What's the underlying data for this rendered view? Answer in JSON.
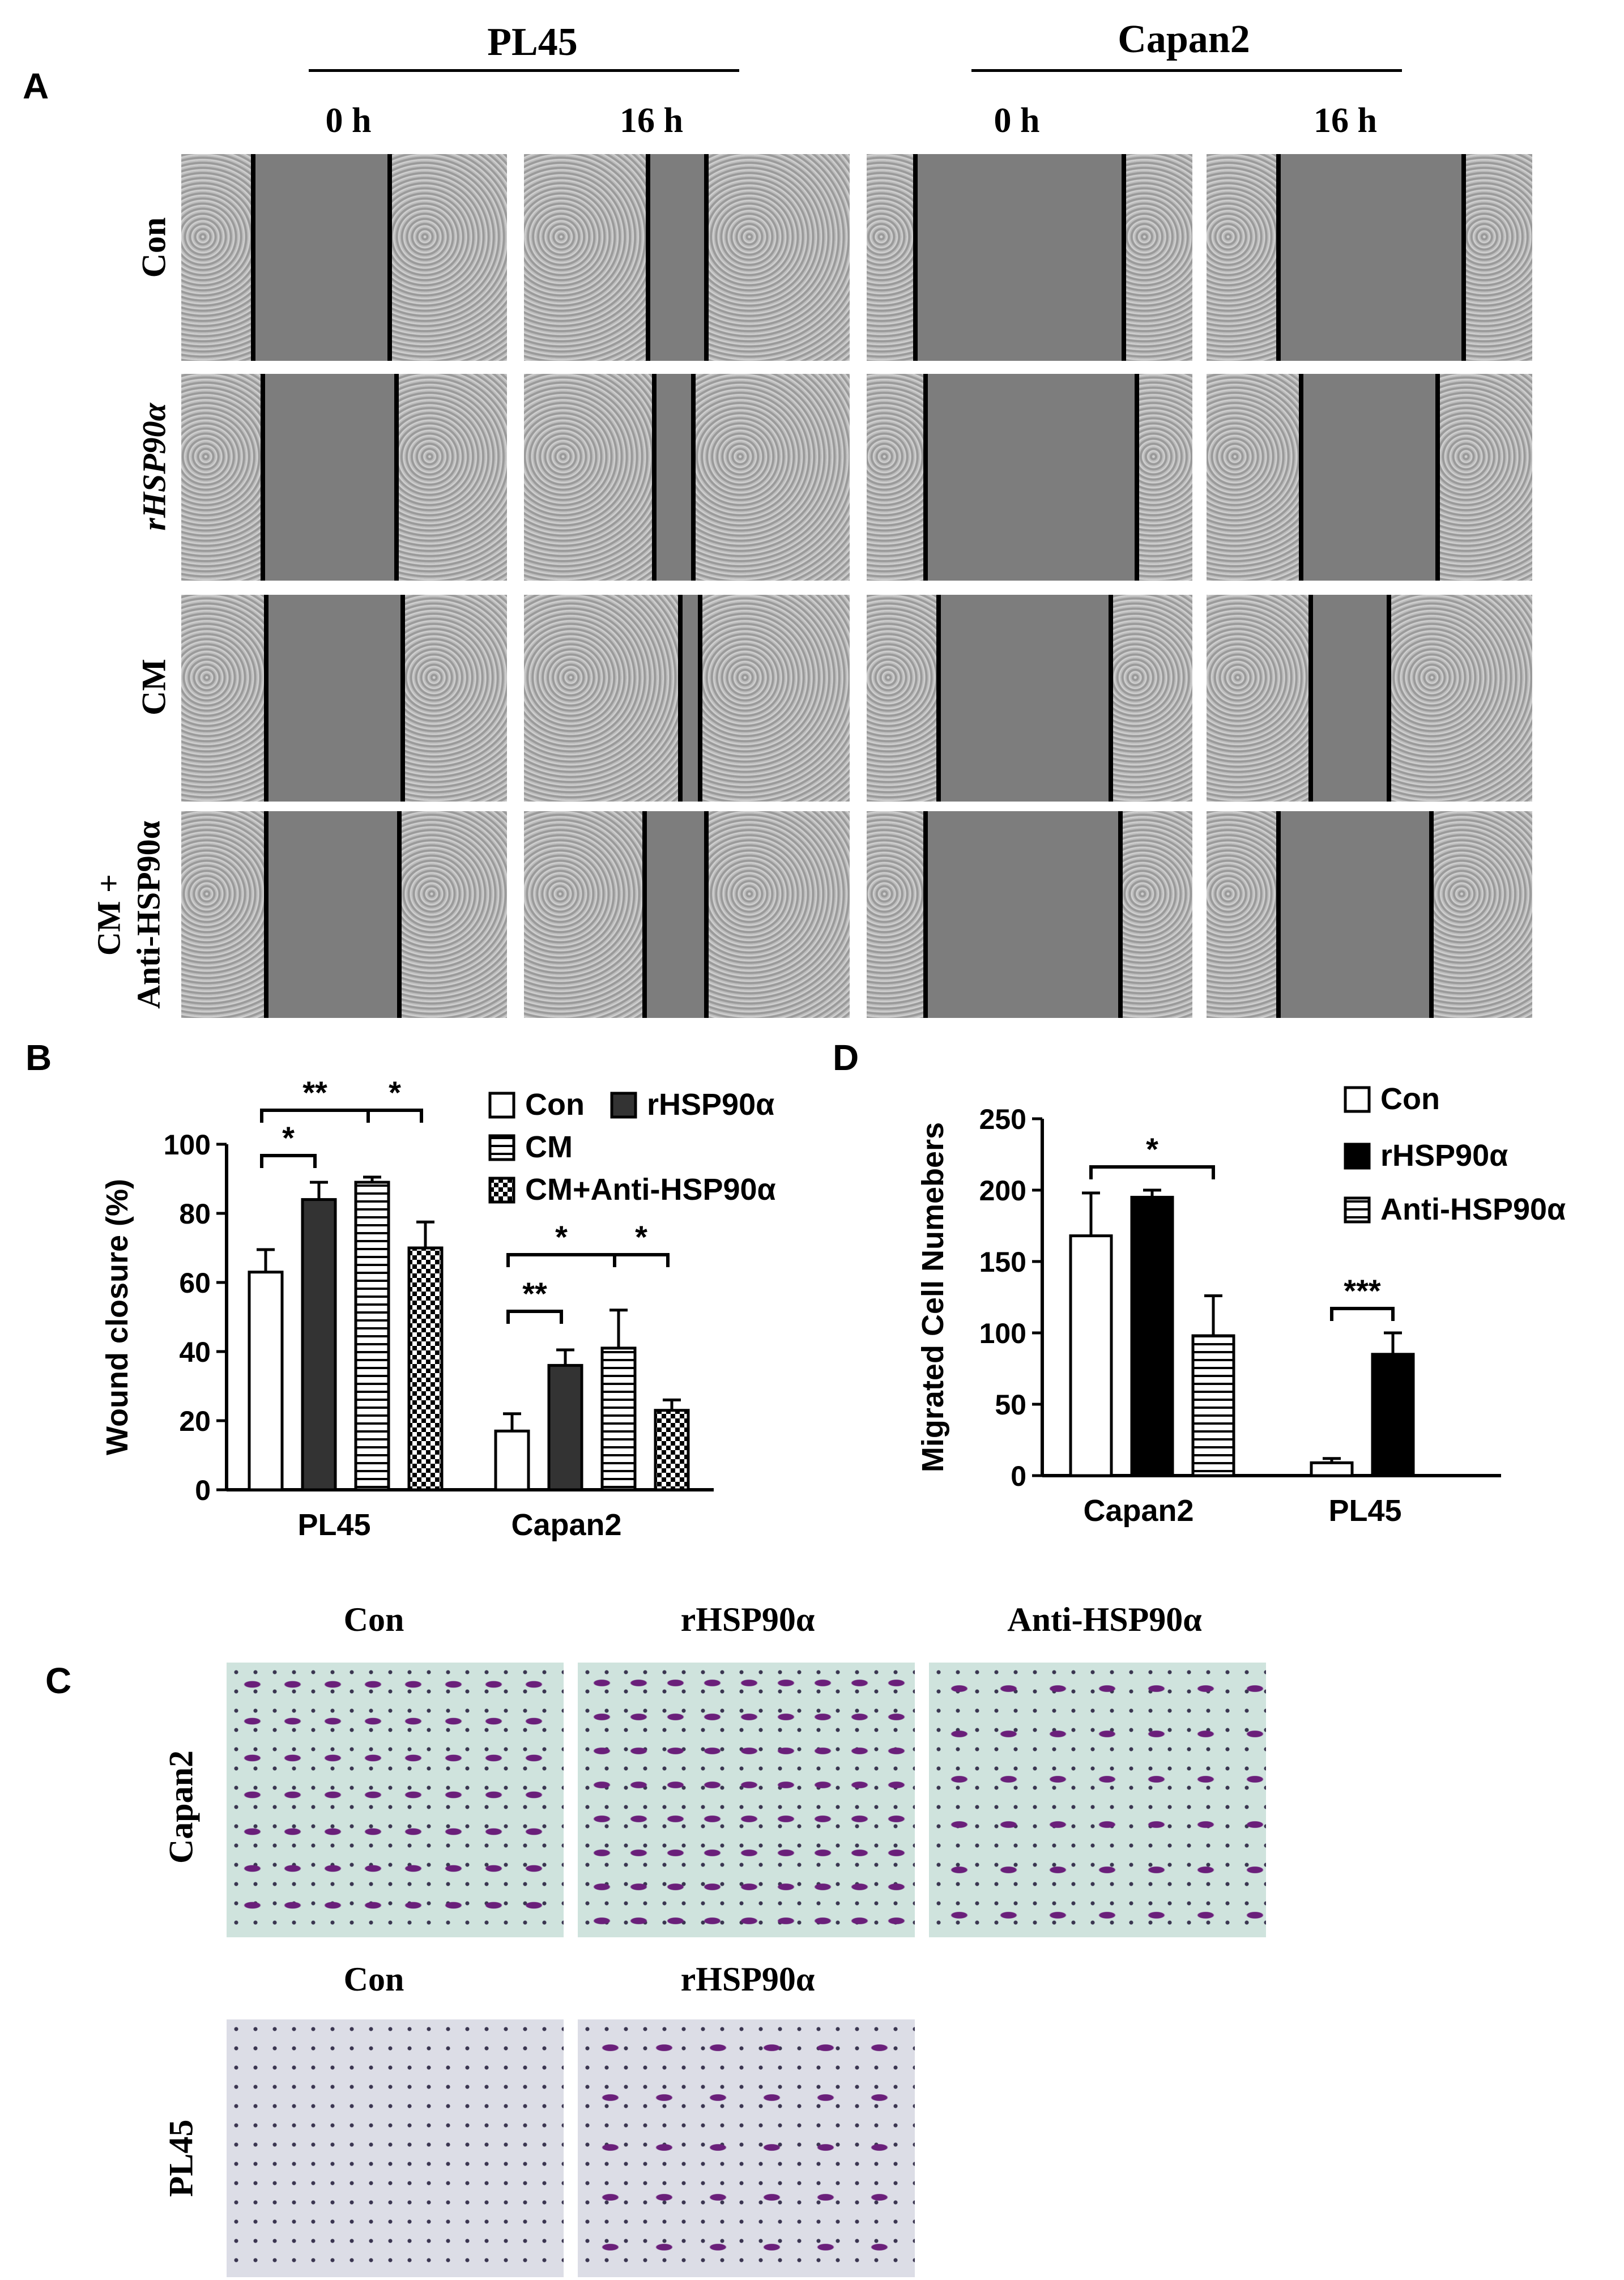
{
  "panels": {
    "A": "A",
    "B": "B",
    "C": "C",
    "D": "D"
  },
  "panelA": {
    "groups": [
      "PL45",
      "Capan2"
    ],
    "times": [
      "0 h",
      "16 h",
      "0 h",
      "16 h"
    ],
    "rows": [
      "Con",
      "rHSP90α",
      "CM",
      "CM +",
      "Anti-HSP90α"
    ]
  },
  "panelC": {
    "capan2_headers": [
      "Con",
      "rHSP90α",
      "Anti-HSP90α"
    ],
    "pl45_headers": [
      "Con",
      "rHSP90α"
    ],
    "row_capan2": "Capan2",
    "row_pl45": "PL45"
  },
  "colors": {
    "open_bar": "#ffffff",
    "dark_bar": "#333333",
    "black_bar": "#000000",
    "gap": "#7d7d7d",
    "cells": "#b5b5b5",
    "stain_bg_capan2": "#cfe3dd",
    "stain_bg_pl45": "#dcdde6",
    "stain_cell": "#6a1f7a"
  },
  "chart_data": [
    {
      "type": "bar",
      "panel": "B",
      "categories": [
        "PL45",
        "Capan2"
      ],
      "series": [
        {
          "name": "Con",
          "values": [
            63,
            17
          ],
          "errors": [
            6.5,
            5
          ],
          "fill": "open"
        },
        {
          "name": "rHSP90α",
          "values": [
            84,
            36
          ],
          "errors": [
            5,
            4.5
          ],
          "fill": "dark"
        },
        {
          "name": "CM",
          "values": [
            89,
            41
          ],
          "errors": [
            1.5,
            11
          ],
          "fill": "hstripe"
        },
        {
          "name": "CM+Anti-HSP90α",
          "values": [
            70,
            23
          ],
          "errors": [
            7.5,
            3
          ],
          "fill": "checker"
        }
      ],
      "ylabel": "Wound closure (%)",
      "ylim": [
        0,
        100
      ],
      "yticks": [
        "0",
        "20",
        "40",
        "60",
        "80",
        "100"
      ],
      "legend": "top-right",
      "significance": [
        "*",
        "**",
        "*",
        "**",
        "*",
        "*"
      ]
    },
    {
      "type": "bar",
      "panel": "D",
      "categories": [
        "Capan2",
        "PL45"
      ],
      "series": [
        {
          "name": "Con",
          "values": [
            168,
            9
          ],
          "errors": [
            30,
            3
          ],
          "fill": "open"
        },
        {
          "name": "rHSP90α",
          "values": [
            195,
            85
          ],
          "errors": [
            5,
            15
          ],
          "fill": "black"
        },
        {
          "name": "Anti-HSP90α",
          "values": [
            98,
            null
          ],
          "errors": [
            28,
            null
          ],
          "fill": "hstripe"
        }
      ],
      "ylabel": "Migrated Cell Numebers",
      "ylim": [
        0,
        250
      ],
      "yticks": [
        "0",
        "50",
        "100",
        "150",
        "200",
        "250"
      ],
      "legend": "top-right",
      "significance": [
        "*",
        "***"
      ]
    }
  ]
}
